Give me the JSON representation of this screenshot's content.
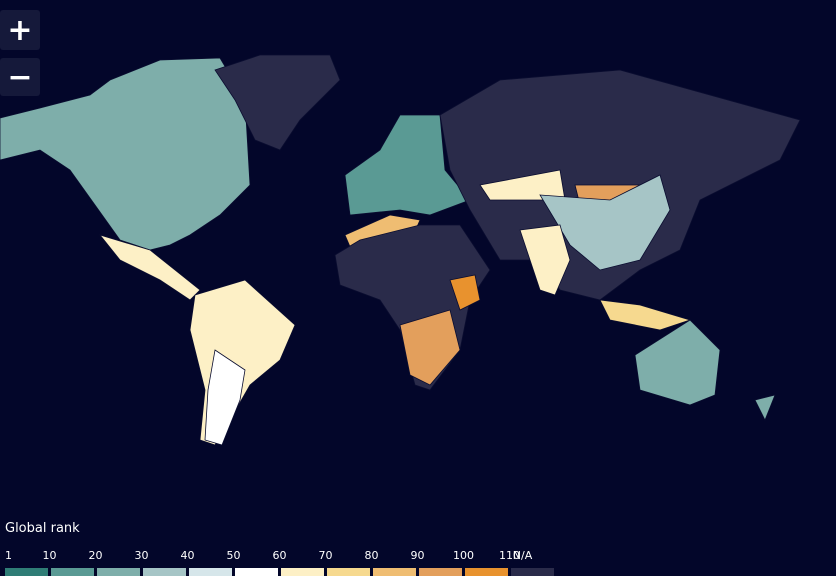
{
  "controls": {
    "zoom_in": "+",
    "zoom_out": "−"
  },
  "legend": {
    "title": "Global rank",
    "labels": [
      1,
      10,
      20,
      30,
      40,
      50,
      60,
      70,
      80,
      90,
      100,
      110
    ],
    "na_label": "N/A",
    "colors": [
      "#2f7d76",
      "#5a9a94",
      "#7eaeaa",
      "#a6c5c6",
      "#d6e6ea",
      "#ffffff",
      "#fdf0c6",
      "#f6d98f",
      "#efbd72",
      "#e39f5c",
      "#e8922e",
      "#2a2b4a"
    ]
  }
}
